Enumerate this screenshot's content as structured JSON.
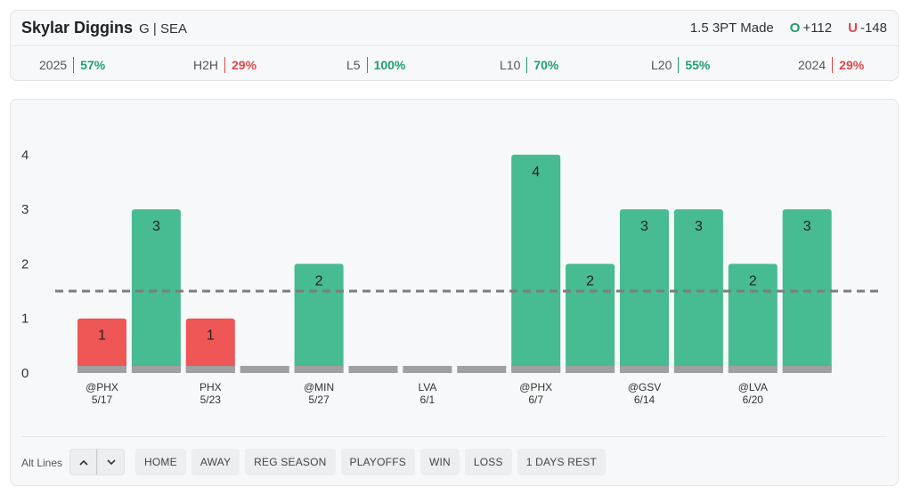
{
  "header": {
    "player_name": "Skylar Diggins",
    "player_meta": "G | SEA",
    "prop_label": "1.5 3PT Made",
    "over_letter": "O",
    "over_odds": "+112",
    "under_letter": "U",
    "under_odds": "-148"
  },
  "stats": [
    {
      "label": "2025",
      "value": "57%",
      "status": "green"
    },
    {
      "label": "H2H",
      "value": "29%",
      "status": "red"
    },
    {
      "label": "L5",
      "value": "100%",
      "status": "green"
    },
    {
      "label": "L10",
      "value": "70%",
      "status": "green"
    },
    {
      "label": "L20",
      "value": "55%",
      "status": "green"
    },
    {
      "label": "2024",
      "value": "29%",
      "status": "red"
    }
  ],
  "chart_data": {
    "type": "bar",
    "line": 1.5,
    "ylim": [
      0,
      4
    ],
    "yticks": [
      "0",
      "1",
      "2",
      "3",
      "4"
    ],
    "values": [
      1,
      3,
      1,
      0,
      2,
      0,
      0,
      0,
      4,
      2,
      3,
      3,
      2,
      3
    ],
    "games": [
      {
        "opp": "@PHX",
        "date": "5/17"
      },
      {
        "opp": "",
        "date": ""
      },
      {
        "opp": "PHX",
        "date": "5/23"
      },
      {
        "opp": "",
        "date": ""
      },
      {
        "opp": "@MIN",
        "date": "5/27"
      },
      {
        "opp": "",
        "date": ""
      },
      {
        "opp": "LVA",
        "date": "6/1"
      },
      {
        "opp": "",
        "date": ""
      },
      {
        "opp": "@PHX",
        "date": "6/7"
      },
      {
        "opp": "",
        "date": ""
      },
      {
        "opp": "@GSV",
        "date": "6/14"
      },
      {
        "opp": "",
        "date": ""
      },
      {
        "opp": "@LVA",
        "date": "6/20"
      },
      {
        "opp": "",
        "date": ""
      }
    ],
    "colors": {
      "over": "#47bb92",
      "under": "#ef5656",
      "base": "#a0a0a0",
      "line": "#7d7d7d"
    }
  },
  "filters": {
    "alt_lines_label": "Alt Lines",
    "up_icon": "chevron-up-icon",
    "down_icon": "chevron-down-icon",
    "chips": [
      "HOME",
      "AWAY",
      "REG SEASON",
      "PLAYOFFS",
      "WIN",
      "LOSS",
      "1 DAYS REST"
    ]
  }
}
